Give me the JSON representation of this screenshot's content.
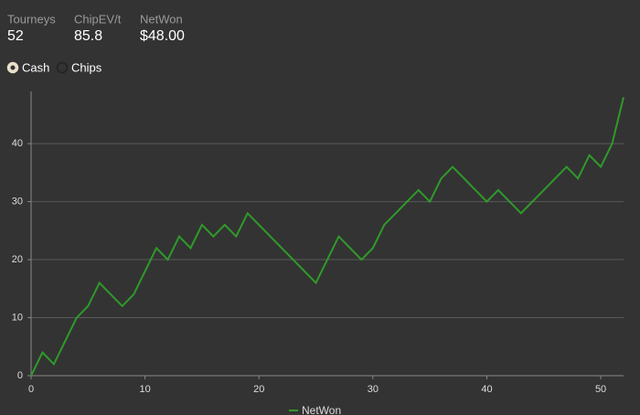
{
  "stats": [
    {
      "label": "Tourneys",
      "value": "52"
    },
    {
      "label": "ChipEV/t",
      "value": "85.8"
    },
    {
      "label": "NetWon",
      "value": "$48.00"
    }
  ],
  "options": [
    "Cash",
    "Chips"
  ],
  "selected_option": 0,
  "chart_data": {
    "type": "line",
    "x": [
      0,
      1,
      2,
      3,
      4,
      5,
      6,
      7,
      8,
      9,
      10,
      11,
      12,
      13,
      14,
      15,
      16,
      17,
      18,
      19,
      20,
      21,
      22,
      23,
      24,
      25,
      26,
      27,
      28,
      29,
      30,
      31,
      32,
      33,
      34,
      35,
      36,
      37,
      38,
      39,
      40,
      41,
      42,
      43,
      44,
      45,
      46,
      47,
      48,
      49,
      50,
      51,
      52
    ],
    "series": [
      {
        "name": "NetWon",
        "color": "#2f9a2a",
        "values": [
          0,
          4,
          2,
          6,
          10,
          12,
          16,
          14,
          12,
          14,
          18,
          22,
          20,
          24,
          22,
          26,
          24,
          26,
          24,
          28,
          26,
          24,
          22,
          20,
          18,
          16,
          20,
          24,
          22,
          20,
          22,
          26,
          28,
          30,
          32,
          30,
          34,
          36,
          34,
          32,
          30,
          32,
          30,
          28,
          30,
          32,
          34,
          36,
          34,
          38,
          36,
          40,
          48
        ]
      }
    ],
    "xlim": [
      0,
      52
    ],
    "xticks": [
      0,
      10,
      20,
      30,
      40,
      50
    ],
    "ylim": [
      0,
      49
    ],
    "yticks": [
      0,
      10,
      20,
      30,
      40
    ],
    "grid": true,
    "legend": "bottom"
  }
}
